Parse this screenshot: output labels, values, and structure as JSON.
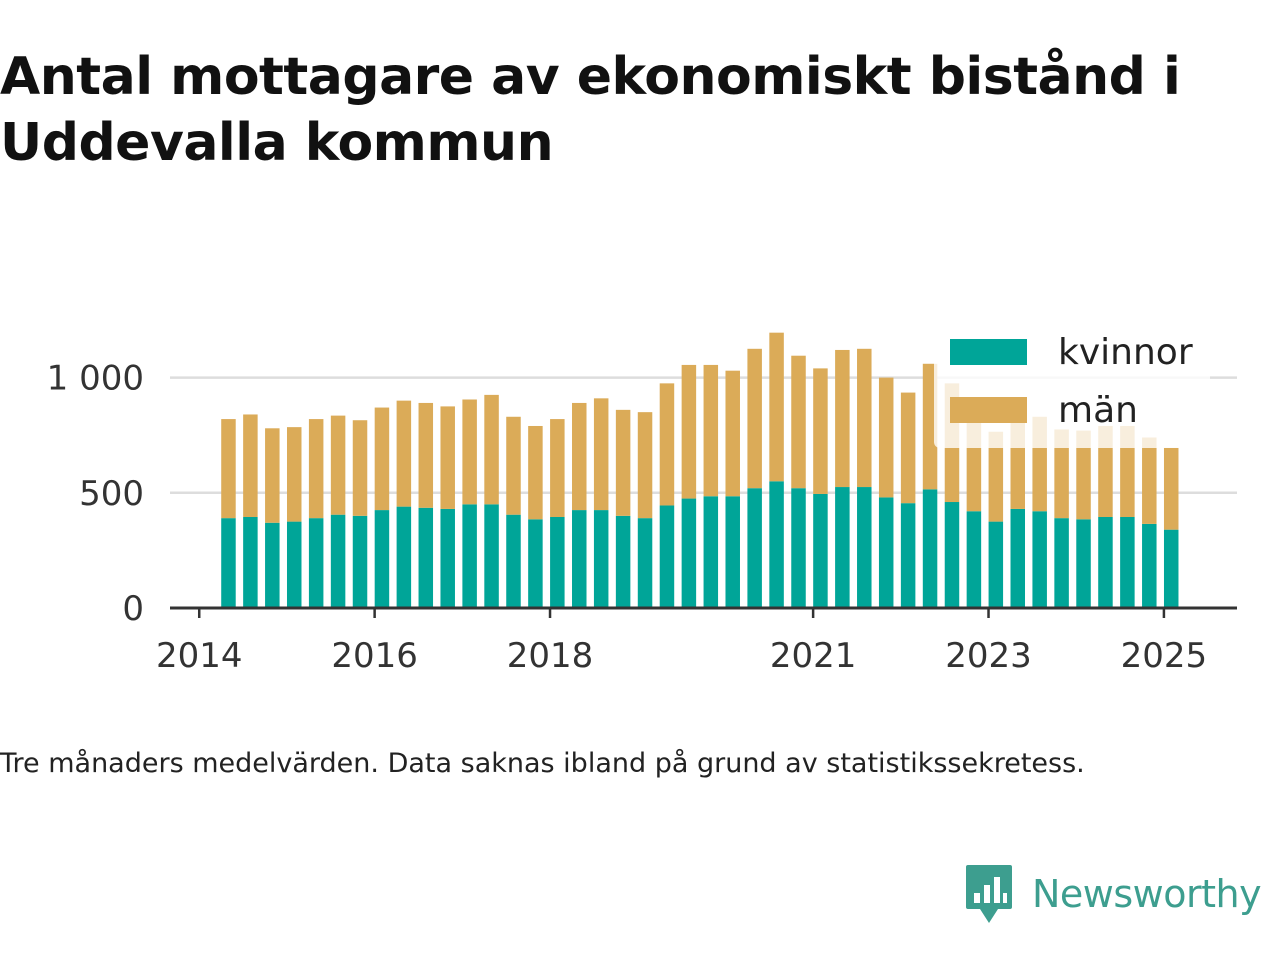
{
  "title": "Antal mottagare av ekonomiskt bistånd i Uddevalla kommun",
  "note": "Tre månaders medelvärden. Data saknas ibland på grund av statistikssekretess.",
  "brand": {
    "name": "Newsworthy",
    "color": "#3d9e8f",
    "icon": "newsworthy-logo-icon"
  },
  "chart_data": {
    "type": "bar",
    "stacked": true,
    "x": [
      "2014-05",
      "2014-08",
      "2014-11",
      "2015-02",
      "2015-05",
      "2015-08",
      "2015-11",
      "2016-02",
      "2016-05",
      "2016-08",
      "2016-11",
      "2017-02",
      "2017-05",
      "2017-08",
      "2017-11",
      "2018-02",
      "2018-05",
      "2018-08",
      "2018-11",
      "2019-02",
      "2019-05",
      "2019-08",
      "2019-11",
      "2020-02",
      "2020-05",
      "2020-08",
      "2020-11",
      "2021-02",
      "2021-05",
      "2021-08",
      "2021-11",
      "2022-02",
      "2022-05",
      "2022-08",
      "2022-11",
      "2023-02",
      "2023-05",
      "2023-08",
      "2023-11",
      "2024-02",
      "2024-05",
      "2024-08",
      "2024-11",
      "2025-02"
    ],
    "series": [
      {
        "name": "kvinnor",
        "color": "#00a598",
        "values": [
          390,
          395,
          370,
          375,
          390,
          405,
          400,
          425,
          440,
          435,
          430,
          450,
          450,
          405,
          385,
          395,
          425,
          425,
          400,
          390,
          445,
          475,
          485,
          485,
          520,
          550,
          520,
          495,
          525,
          525,
          480,
          455,
          515,
          460,
          420,
          375,
          430,
          420,
          390,
          385,
          395,
          395,
          365,
          340
        ]
      },
      {
        "name": "män",
        "color": "#dbab58",
        "values": [
          430,
          445,
          410,
          410,
          430,
          430,
          415,
          445,
          460,
          455,
          445,
          455,
          475,
          425,
          405,
          425,
          465,
          485,
          460,
          460,
          530,
          580,
          570,
          545,
          605,
          645,
          575,
          545,
          595,
          600,
          520,
          480,
          545,
          515,
          450,
          390,
          450,
          410,
          385,
          385,
          395,
          395,
          375,
          355
        ]
      }
    ],
    "y_ticks": [
      0,
      500,
      1000
    ],
    "y_tick_labels": [
      "0",
      "500",
      "1 000"
    ],
    "x_ticks": [
      "2014",
      "2016",
      "2018",
      "2021",
      "2023",
      "2025"
    ],
    "ylim": [
      0,
      1250
    ],
    "xlim": [
      "2013-09",
      "2025-11"
    ],
    "grid": "horizontal",
    "legend_position": "top-right"
  }
}
